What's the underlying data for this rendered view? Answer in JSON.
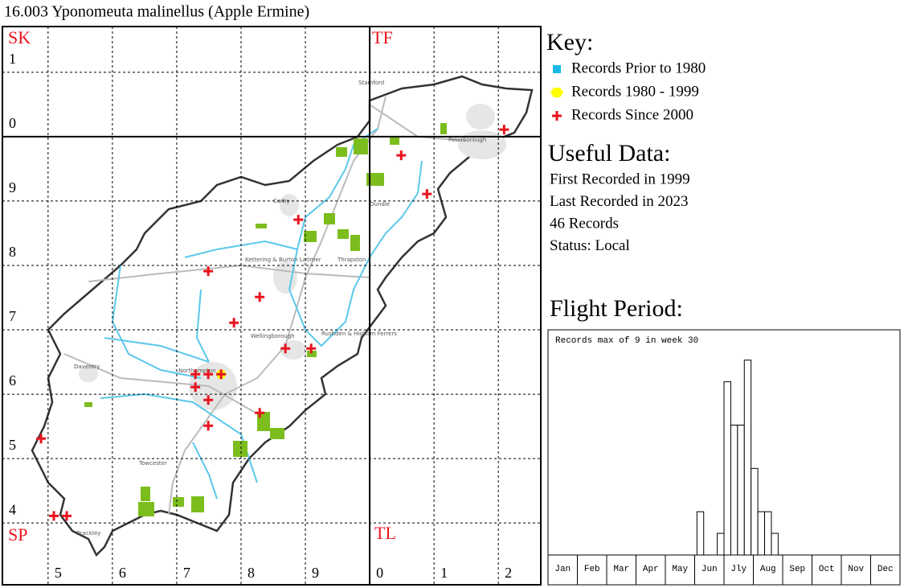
{
  "title": "16.003 Yponomeuta malinellus (Apple Ermine)",
  "map": {
    "squares": [
      "SK",
      "TF",
      "SP",
      "TL"
    ],
    "elim": [
      442.9,
      526.6
    ],
    "nlim": [
      230.4,
      317.1
    ],
    "eastings": [
      {
        "value": 450,
        "label": "5"
      },
      {
        "value": 460,
        "label": "6"
      },
      {
        "value": 470,
        "label": "7"
      },
      {
        "value": 480,
        "label": "8"
      },
      {
        "value": 490,
        "label": "9"
      },
      {
        "value": 500,
        "label": "0"
      },
      {
        "value": 510,
        "label": "1"
      },
      {
        "value": 520,
        "label": "2"
      }
    ],
    "northings": [
      {
        "value": 240,
        "label": "4"
      },
      {
        "value": 250,
        "label": "5"
      },
      {
        "value": 260,
        "label": "6"
      },
      {
        "value": 270,
        "label": "7"
      },
      {
        "value": 280,
        "label": "8"
      },
      {
        "value": 290,
        "label": "9"
      },
      {
        "value": 300,
        "label": "0"
      },
      {
        "value": 310,
        "label": "1"
      }
    ],
    "towns": [
      "Stamford",
      "Peterborough",
      "Corby",
      "Oundle",
      "Kettering & Burton Latimer",
      "Thrapston",
      "Wellingborough",
      "Rushden & Higham Ferrers",
      "Daventry",
      "Northampton",
      "Towcester",
      "Brackley"
    ],
    "records_since_2000": [
      [
        520.9,
        301.1
      ],
      [
        504.9,
        297.1
      ],
      [
        508.9,
        291.1
      ],
      [
        488.9,
        287.1
      ],
      [
        474.9,
        279.1
      ],
      [
        482.9,
        275.1
      ],
      [
        478.9,
        271.1
      ],
      [
        486.9,
        267.1
      ],
      [
        490.9,
        267.1
      ],
      [
        472.9,
        263.1
      ],
      [
        474.9,
        263.1
      ],
      [
        476.9,
        263.1
      ],
      [
        472.9,
        261.1
      ],
      [
        474.9,
        259.1
      ],
      [
        482.9,
        257.1
      ],
      [
        474.9,
        255.1
      ],
      [
        448.9,
        253.1
      ],
      [
        450.9,
        241.1
      ],
      [
        452.9,
        241.1
      ]
    ],
    "records_1980_1999": [
      [
        476.9,
        263.1
      ]
    ]
  },
  "key": {
    "heading": "Key:",
    "items": [
      "Records Prior to 1980",
      "Records 1980 - 1999",
      "Records Since 2000"
    ],
    "colors": [
      "#1ab8e8",
      "#ffff00",
      "#e8141e"
    ]
  },
  "useful": {
    "heading": "Useful Data:",
    "lines": [
      "First Recorded in 1999",
      "Last Recorded in 2023",
      "46 Records",
      "Status: Local"
    ]
  },
  "chart_data": {
    "type": "histogram",
    "title": "Flight Period:",
    "annotation": "Records max of 9 in week 30",
    "categories": [
      "Jan",
      "Feb",
      "Mar",
      "Apr",
      "May",
      "Jun",
      "Jly",
      "Aug",
      "Sep",
      "Oct",
      "Nov",
      "Dec"
    ],
    "weeks": [
      23,
      26,
      27,
      28,
      29,
      30,
      31,
      32,
      33,
      34
    ],
    "values": [
      2,
      1,
      8,
      6,
      6,
      9,
      4,
      2,
      2,
      1
    ],
    "xlim": [
      1,
      53
    ],
    "ylim": [
      0,
      10.4
    ]
  }
}
